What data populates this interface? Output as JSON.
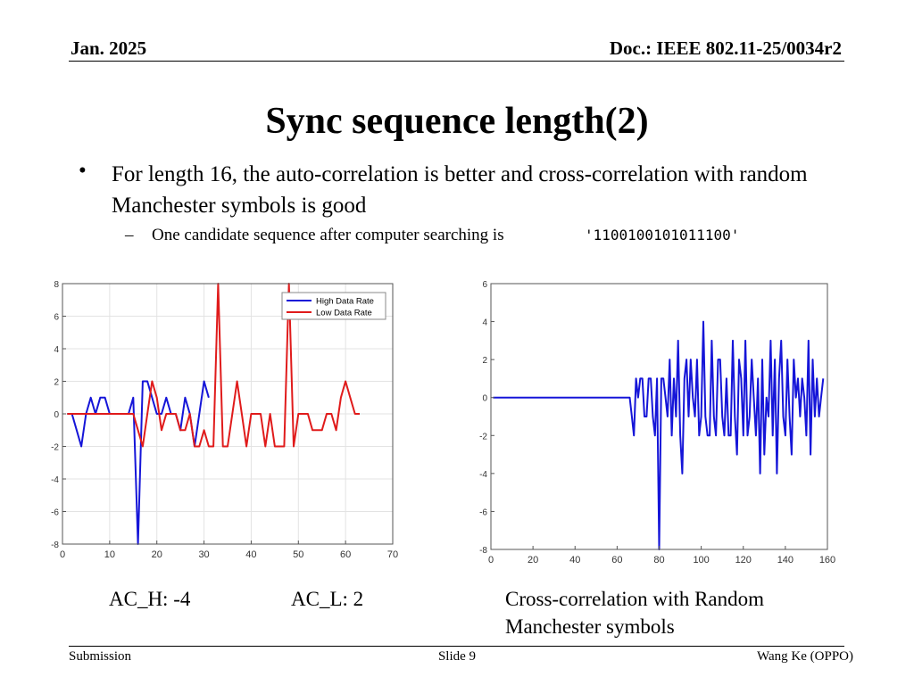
{
  "header": {
    "date": "Jan. 2025",
    "doc": "Doc.: IEEE 802.11-25/0034r2"
  },
  "title": "Sync sequence length(2)",
  "bullets": {
    "main": "For length 16, the auto-correlation is better and cross-correlation with random Manchester symbols is good",
    "sub": "One candidate sequence after computer searching is",
    "sub_code": "'1100100101011100'"
  },
  "captions": {
    "ac_h": "AC_H: -4",
    "ac_l": "AC_L: 2",
    "cross": "Cross-correlation with Random Manchester symbols"
  },
  "footer": {
    "left": "Submission",
    "center": "Slide 9",
    "right": "Wang Ke (OPPO)"
  },
  "colors": {
    "blue": "#1515d8",
    "red": "#e01b1b",
    "grid": "#e3e3e3"
  },
  "chart_data": [
    {
      "type": "line",
      "xlim": [
        0,
        70
      ],
      "ylim": [
        -8,
        8
      ],
      "xticks": [
        0,
        10,
        20,
        30,
        40,
        50,
        60,
        70
      ],
      "yticks": [
        -8,
        -6,
        -4,
        -2,
        0,
        2,
        4,
        6,
        8
      ],
      "grid": true,
      "legend": "top-right",
      "series": [
        {
          "name": "High Data Rate",
          "color": "#1515d8",
          "x": [
            1,
            2,
            3,
            4,
            5,
            6,
            7,
            8,
            9,
            10,
            11,
            12,
            13,
            14,
            15,
            16,
            17,
            18,
            19,
            20,
            21,
            22,
            23,
            24,
            25,
            26,
            27,
            28,
            29,
            30,
            31
          ],
          "y": [
            0,
            0,
            -1,
            -2,
            0,
            1,
            0,
            1,
            1,
            0,
            0,
            0,
            0,
            0,
            1,
            -8,
            2,
            2,
            1,
            0,
            0,
            1,
            0,
            0,
            -1,
            1,
            0,
            -2,
            0,
            2,
            1
          ]
        },
        {
          "name": "Low Data Rate",
          "color": "#e01b1b",
          "x": [
            1,
            2,
            3,
            4,
            5,
            6,
            7,
            8,
            9,
            10,
            11,
            12,
            13,
            14,
            15,
            16,
            17,
            18,
            19,
            20,
            21,
            22,
            23,
            24,
            25,
            26,
            27,
            28,
            29,
            30,
            31,
            32,
            33,
            34,
            35,
            36,
            37,
            38,
            39,
            40,
            41,
            42,
            43,
            44,
            45,
            46,
            47,
            48,
            49,
            50,
            51,
            52,
            53,
            54,
            55,
            56,
            57,
            58,
            59,
            60,
            61,
            62,
            63
          ],
          "y": [
            0,
            0,
            0,
            0,
            0,
            0,
            0,
            0,
            0,
            0,
            0,
            0,
            0,
            0,
            0,
            -1,
            -2,
            0,
            2,
            1,
            -1,
            0,
            0,
            0,
            -1,
            -1,
            0,
            -2,
            -2,
            -1,
            -2,
            -2,
            8,
            -2,
            -2,
            0,
            2,
            0,
            -2,
            0,
            0,
            0,
            -2,
            0,
            -2,
            -2,
            -2,
            8,
            -2,
            0,
            0,
            0,
            -1,
            -1,
            -1,
            0,
            0,
            -1,
            1,
            2,
            1,
            0,
            0
          ]
        }
      ]
    },
    {
      "type": "line",
      "xlim": [
        0,
        160
      ],
      "ylim": [
        -8,
        6
      ],
      "xticks": [
        0,
        20,
        40,
        60,
        80,
        100,
        120,
        140,
        160
      ],
      "yticks": [
        -8,
        -6,
        -4,
        -2,
        0,
        2,
        4,
        6
      ],
      "grid": false,
      "series": [
        {
          "color": "#1515d8",
          "x": [
            1,
            66,
            67,
            68,
            69,
            70,
            71,
            72,
            73,
            74,
            75,
            76,
            77,
            78,
            79,
            80,
            81,
            82,
            83,
            84,
            85,
            86,
            87,
            88,
            89,
            90,
            91,
            92,
            93,
            94,
            95,
            96,
            97,
            98,
            99,
            100,
            101,
            102,
            103,
            104,
            105,
            106,
            107,
            108,
            109,
            110,
            111,
            112,
            113,
            114,
            115,
            116,
            117,
            118,
            119,
            120,
            121,
            122,
            123,
            124,
            125,
            126,
            127,
            128,
            129,
            130,
            131,
            132,
            133,
            134,
            135,
            136,
            137,
            138,
            139,
            140,
            141,
            142,
            143,
            144,
            145,
            146,
            147,
            148,
            149,
            150,
            151,
            152,
            153,
            154,
            155,
            156,
            157,
            158
          ],
          "y": [
            0,
            0,
            -1,
            -2,
            1,
            0,
            1,
            1,
            -1,
            -1,
            1,
            1,
            -1,
            -2,
            1,
            -8,
            1,
            1,
            0,
            -1,
            2,
            -2,
            1,
            -1,
            3,
            -2,
            -4,
            1,
            2,
            -1,
            2,
            0,
            -1,
            2,
            -2,
            -1,
            4,
            -1,
            -2,
            -2,
            3,
            -1,
            -2,
            2,
            2,
            -1,
            -2,
            1,
            -2,
            -2,
            3,
            -1,
            -3,
            2,
            1,
            -2,
            3,
            -2,
            -1,
            2,
            0,
            -2,
            1,
            -4,
            2,
            -3,
            0,
            -1,
            3,
            -2,
            2,
            -4,
            1,
            3,
            -1,
            -2,
            2,
            -1,
            -3,
            2,
            0,
            1,
            -1,
            1,
            0,
            -2,
            3,
            -3,
            2,
            -1,
            1,
            -1,
            0,
            1
          ]
        }
      ]
    }
  ]
}
